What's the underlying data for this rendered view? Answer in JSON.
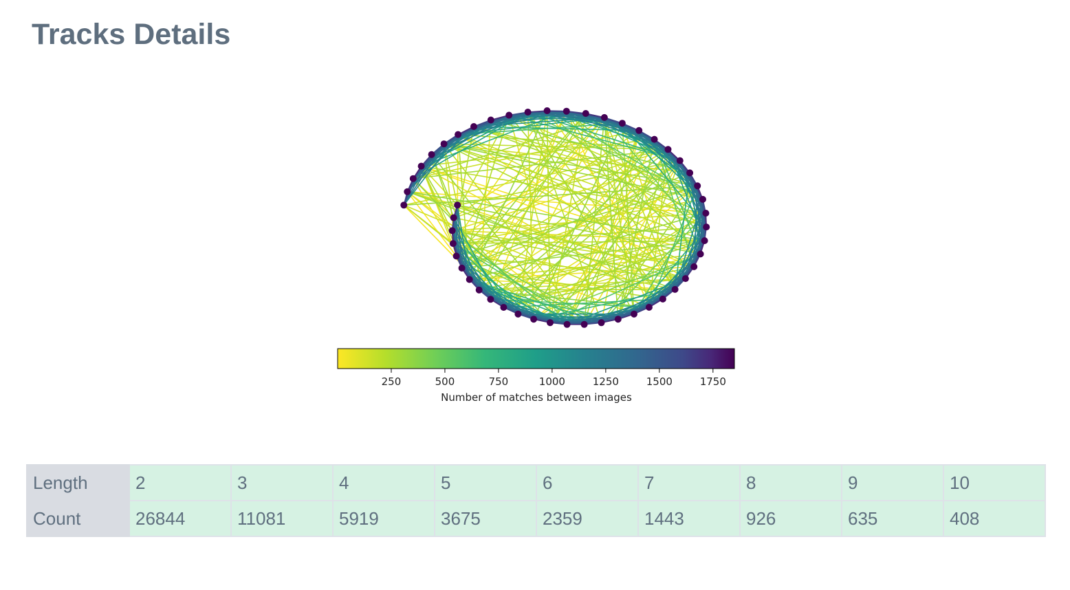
{
  "page": {
    "title": "Tracks Details"
  },
  "chart_data": {
    "type": "network",
    "colorbar": {
      "label": "Number of matches between images",
      "ticks": [
        250,
        500,
        750,
        1000,
        1250,
        1500,
        1750
      ],
      "range": [
        0,
        1850
      ],
      "colormap": "viridis_r"
    },
    "node_color": "#440154",
    "node_count": 50
  },
  "table": {
    "rows": [
      {
        "header": "Length",
        "cells": [
          "2",
          "3",
          "4",
          "5",
          "6",
          "7",
          "8",
          "9",
          "10"
        ]
      },
      {
        "header": "Count",
        "cells": [
          "26844",
          "11081",
          "5919",
          "3675",
          "2359",
          "1443",
          "926",
          "635",
          "408"
        ]
      }
    ]
  }
}
